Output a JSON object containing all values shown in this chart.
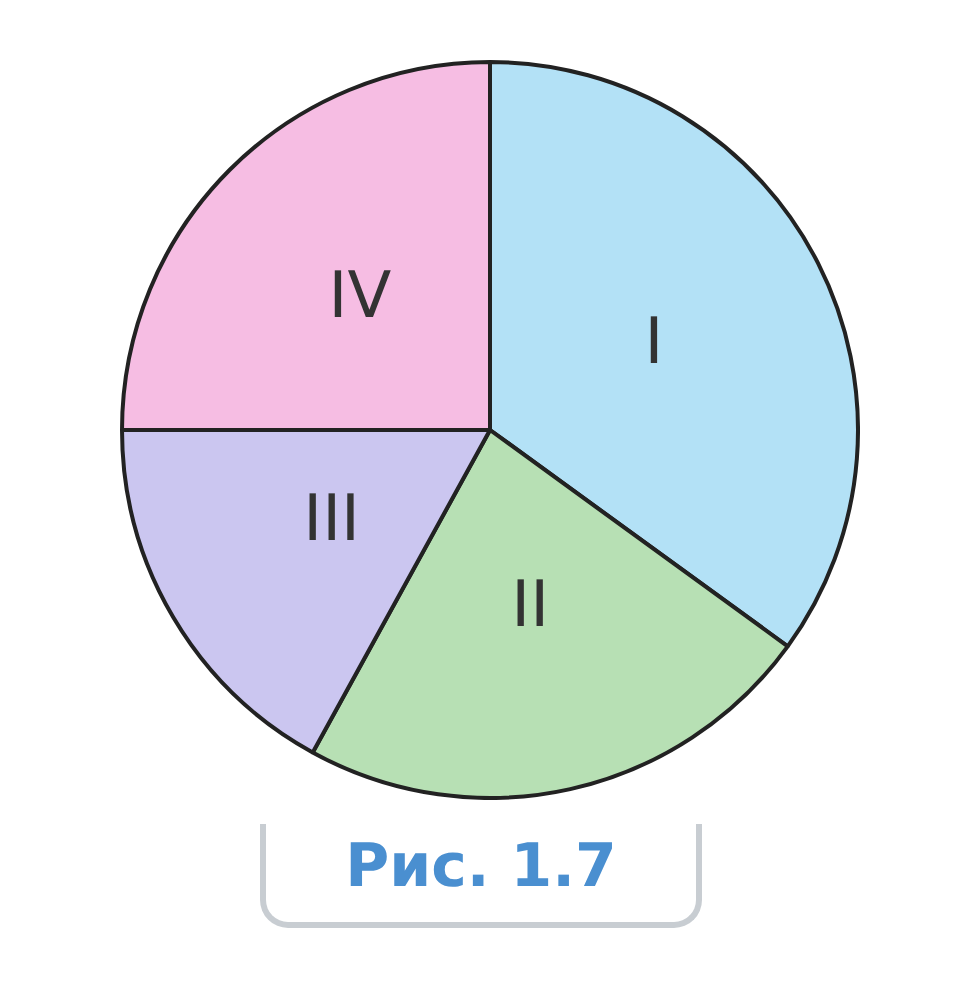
{
  "chart_data": {
    "type": "pie",
    "categories": [
      "I",
      "II",
      "III",
      "IV"
    ],
    "values": [
      35,
      23,
      17,
      25
    ],
    "colors": [
      "#b3e1f6",
      "#b7e0b4",
      "#cbc6f0",
      "#f6bde3"
    ],
    "legend": false,
    "annotations": [
      "Рис. 1.7"
    ]
  }
}
